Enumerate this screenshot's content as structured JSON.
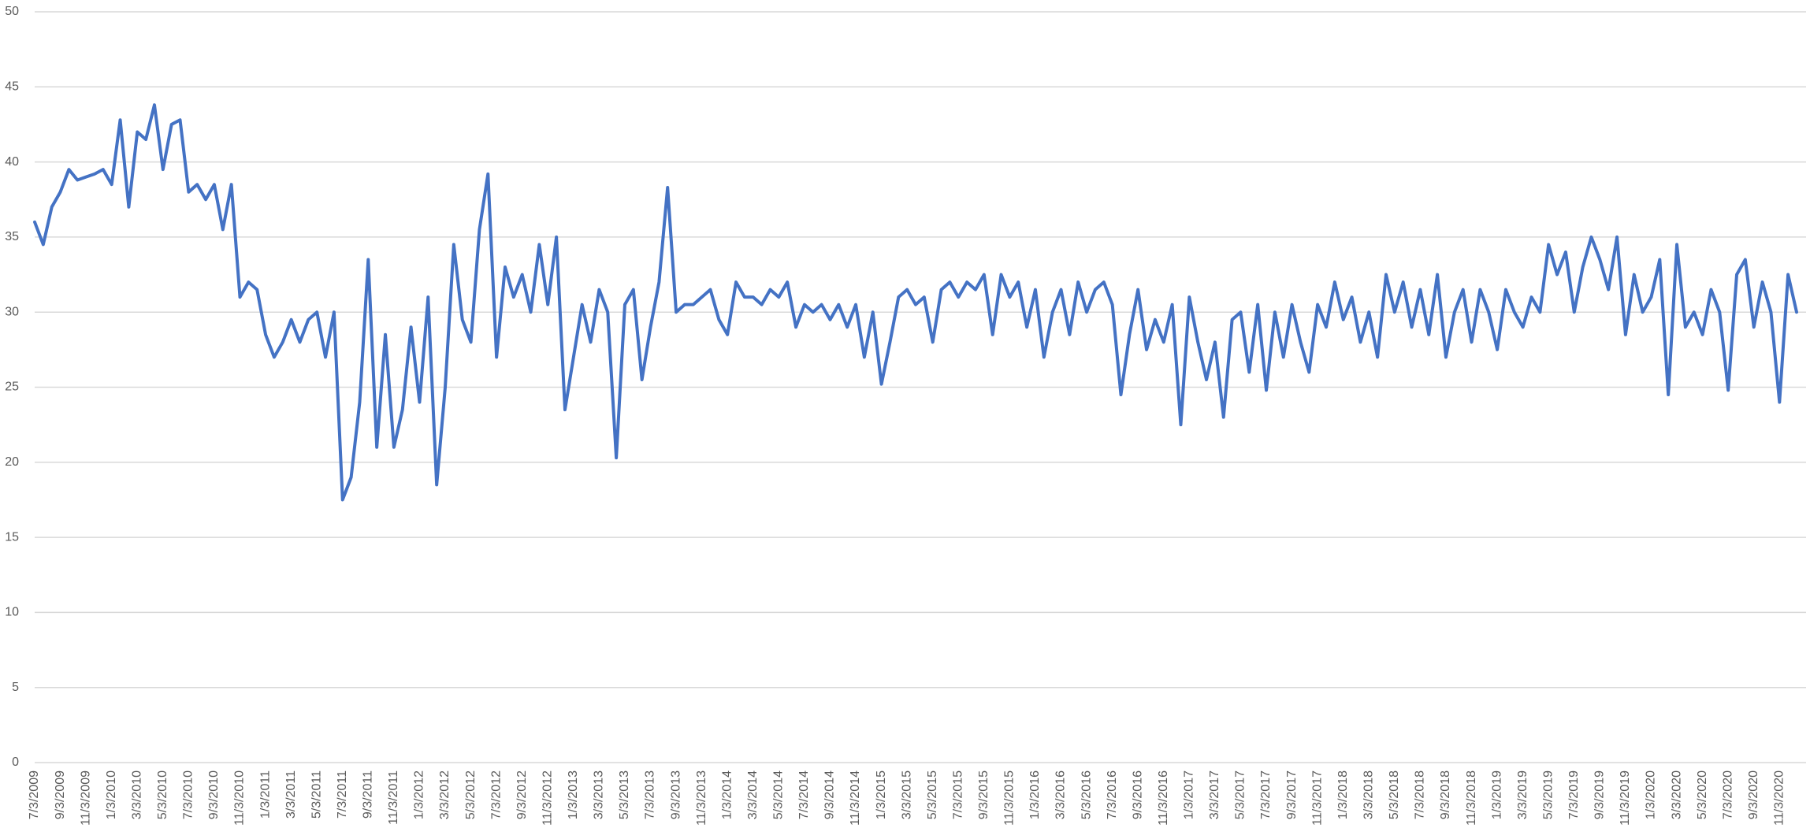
{
  "chart_data": {
    "type": "line",
    "color": "#4472c4",
    "ylim": [
      0,
      50
    ],
    "yticks": [
      0,
      5,
      10,
      15,
      20,
      25,
      30,
      35,
      40,
      45,
      50
    ],
    "grid": true,
    "categories": [
      "7/3/2009",
      null,
      null,
      "9/3/2009",
      null,
      null,
      "11/3/2009",
      null,
      null,
      "1/3/2010",
      null,
      null,
      "3/3/2010",
      null,
      null,
      "5/3/2010",
      null,
      null,
      "7/3/2010",
      null,
      null,
      "9/3/2010",
      null,
      null,
      "11/3/2010",
      null,
      null,
      "1/3/2011",
      null,
      null,
      "3/3/2011",
      null,
      null,
      "5/3/2011",
      null,
      null,
      "7/3/2011",
      null,
      null,
      "9/3/2011",
      null,
      null,
      "11/3/2011",
      null,
      null,
      "1/3/2012",
      null,
      null,
      "3/3/2012",
      null,
      null,
      "5/3/2012",
      null,
      null,
      "7/3/2012",
      null,
      null,
      "9/3/2012",
      null,
      null,
      "11/3/2012",
      null,
      null,
      "1/3/2013",
      null,
      null,
      "3/3/2013",
      null,
      null,
      "5/3/2013",
      null,
      null,
      "7/3/2013",
      null,
      null,
      "9/3/2013",
      null,
      null,
      "11/3/2013",
      null,
      null,
      "1/3/2014",
      null,
      null,
      "3/3/2014",
      null,
      null,
      "5/3/2014",
      null,
      null,
      "7/3/2014",
      null,
      null,
      "9/3/2014",
      null,
      null,
      "11/3/2014",
      null,
      null,
      "1/3/2015",
      null,
      null,
      "3/3/2015",
      null,
      null,
      "5/3/2015",
      null,
      null,
      "7/3/2015",
      null,
      null,
      "9/3/2015",
      null,
      null,
      "11/3/2015",
      null,
      null,
      "1/3/2016",
      null,
      null,
      "3/3/2016",
      null,
      null,
      "5/3/2016",
      null,
      null,
      "7/3/2016",
      null,
      null,
      "9/3/2016",
      null,
      null,
      "11/3/2016",
      null,
      null,
      "1/3/2017",
      null,
      null,
      "3/3/2017",
      null,
      null,
      "5/3/2017",
      null,
      null,
      "7/3/2017",
      null,
      null,
      "9/3/2017",
      null,
      null,
      "11/3/2017",
      null,
      null,
      "1/3/2018",
      null,
      null,
      "3/3/2018",
      null,
      null,
      "5/3/2018",
      null,
      null,
      "7/3/2018",
      null,
      null,
      "9/3/2018",
      null,
      null,
      "11/3/2018",
      null,
      null,
      "1/3/2019",
      null,
      null,
      "3/3/2019",
      null,
      null,
      "5/3/2019",
      null,
      null,
      "7/3/2019",
      null,
      null,
      "9/3/2019",
      null,
      null,
      "11/3/2019",
      null,
      null,
      "1/3/2020",
      null,
      null,
      "3/3/2020",
      null,
      null,
      "5/3/2020",
      null,
      null,
      "7/3/2020",
      null,
      null,
      "9/3/2020",
      null,
      null,
      "11/3/2020",
      null,
      null
    ],
    "values": [
      36,
      34.5,
      37,
      38,
      39.5,
      38.8,
      39,
      39.2,
      39.5,
      38.5,
      42.8,
      37,
      42,
      41.5,
      43.8,
      39.5,
      42.5,
      42.8,
      38,
      38.5,
      37.5,
      38.5,
      35.5,
      38.5,
      31,
      32,
      31.5,
      28.5,
      27,
      28,
      29.5,
      28,
      29.5,
      30,
      27,
      30,
      17.5,
      19,
      24,
      33.5,
      21,
      28.5,
      21,
      23.5,
      29,
      24,
      31,
      18.5,
      25,
      34.5,
      29.5,
      28,
      35.5,
      39.2,
      27,
      33,
      31,
      32.5,
      30,
      34.5,
      30.5,
      35,
      23.5,
      27,
      30.5,
      28,
      31.5,
      30,
      20.3,
      30.5,
      31.5,
      25.5,
      29,
      32,
      38.3,
      30,
      30.5,
      30.5,
      31,
      31.5,
      29.5,
      28.5,
      32,
      31,
      31,
      30.5,
      31.5,
      31,
      32,
      29,
      30.5,
      30,
      30.5,
      29.5,
      30.5,
      29,
      30.5,
      27,
      30,
      25.2,
      28,
      31,
      31.5,
      30.5,
      31,
      28,
      31.5,
      32,
      31,
      32,
      31.5,
      32.5,
      28.5,
      32.5,
      31,
      32,
      29,
      31.5,
      27,
      30,
      31.5,
      28.5,
      32,
      30,
      31.5,
      32,
      30.5,
      24.5,
      28.5,
      31.5,
      27.5,
      29.5,
      28,
      30.5,
      22.5,
      31,
      28,
      25.5,
      28,
      23,
      29.5,
      30,
      26,
      30.5,
      24.8,
      30,
      27,
      30.5,
      28,
      26,
      30.5,
      29,
      32,
      29.5,
      31,
      28,
      30,
      27,
      32.5,
      30,
      32,
      29,
      31.5,
      28.5,
      32.5,
      27,
      30,
      31.5,
      28,
      31.5,
      30,
      27.5,
      31.5,
      30,
      29,
      31,
      30,
      34.5,
      32.5,
      34,
      30,
      33,
      35,
      33.5,
      31.5,
      35,
      28.5,
      32.5,
      30,
      31,
      33.5,
      24.5,
      34.5,
      29,
      30,
      28.5,
      31.5,
      30,
      24.8,
      32.5,
      33.5,
      29,
      32,
      30,
      24,
      32.5,
      30
    ]
  }
}
